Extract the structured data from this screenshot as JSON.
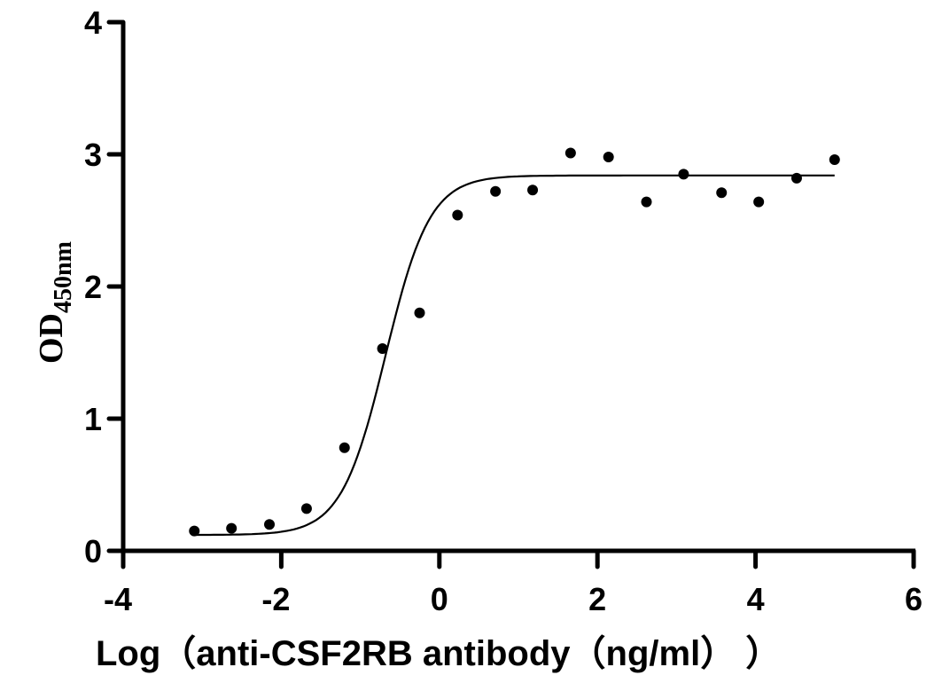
{
  "chart_data": {
    "type": "scatter",
    "title": "",
    "xlabel": "Log（anti-CSF2RB antibody（ng/ml）  ）",
    "ylabel": "OD",
    "ylabel_subscript": "450nm",
    "xlim": [
      -4,
      6
    ],
    "ylim": [
      0,
      4
    ],
    "xticks": [
      -4,
      -2,
      0,
      2,
      4,
      6
    ],
    "yticks": [
      0,
      1,
      2,
      3,
      4
    ],
    "grid": false,
    "legend": null,
    "series": [
      {
        "name": "data points",
        "marker": "filled-circle",
        "x": [
          -3.1,
          -2.63,
          -2.15,
          -1.68,
          -1.2,
          -0.72,
          -0.25,
          0.23,
          0.71,
          1.18,
          1.66,
          2.14,
          2.62,
          3.09,
          3.57,
          4.04,
          4.52,
          5.0
        ],
        "y": [
          0.15,
          0.17,
          0.2,
          0.32,
          0.78,
          1.53,
          1.8,
          2.54,
          2.72,
          2.73,
          3.01,
          2.98,
          2.64,
          2.85,
          2.71,
          2.64,
          2.82,
          2.96
        ]
      },
      {
        "name": "4PL fit",
        "type": "line",
        "model": "four-parameter-logistic",
        "bottom": 0.12,
        "top": 2.84,
        "logEC50": -0.68,
        "hill": 1.55,
        "x_range": [
          -3.1,
          5.0
        ]
      }
    ],
    "colors": {
      "axis": "#000000",
      "points": "#000000",
      "curve": "#000000"
    }
  }
}
